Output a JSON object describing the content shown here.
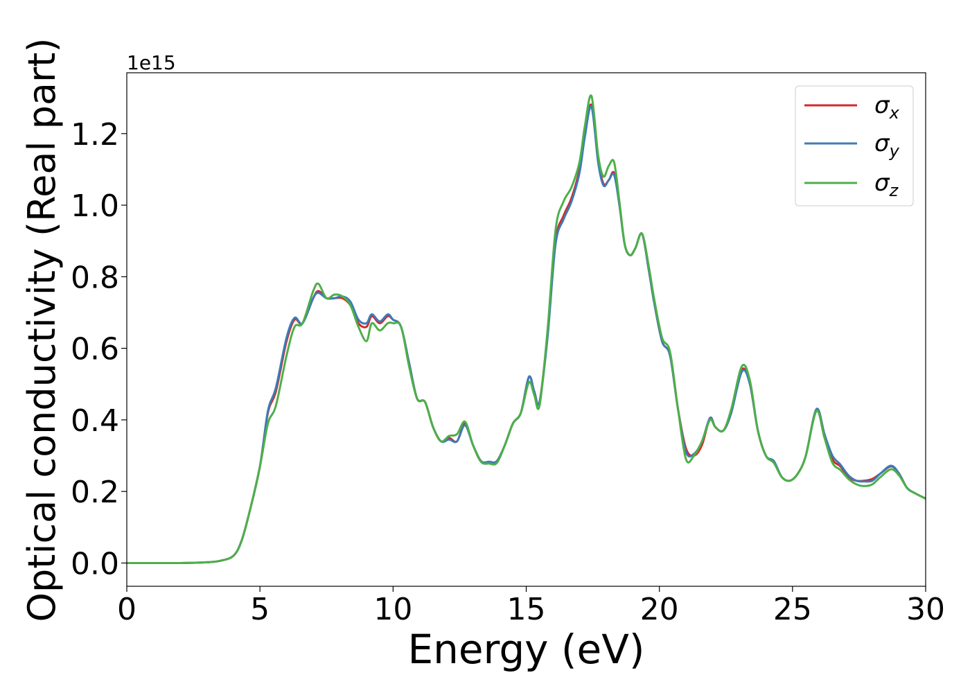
{
  "chart_data": {
    "type": "line",
    "xlabel": "Energy (eV)",
    "ylabel": "Optical conductivity (Real part)",
    "offset_label": "1e15",
    "xlim": [
      0,
      30
    ],
    "ylim": [
      -0.065,
      1.37
    ],
    "xticks": [
      0,
      5,
      10,
      15,
      20,
      25,
      30
    ],
    "xtick_labels": [
      "0",
      "5",
      "10",
      "15",
      "20",
      "25",
      "30"
    ],
    "yticks": [
      0.0,
      0.2,
      0.4,
      0.6,
      0.8,
      1.0,
      1.2
    ],
    "ytick_labels": [
      "0.0",
      "0.2",
      "0.4",
      "0.6",
      "0.8",
      "1.0",
      "1.2"
    ],
    "grid": false,
    "legend_position": "top-right",
    "x": [
      0,
      1,
      2,
      3,
      3.5,
      4,
      4.3,
      4.6,
      5,
      5.3,
      5.6,
      6,
      6.3,
      6.6,
      7,
      7.2,
      7.5,
      7.8,
      8.1,
      8.4,
      8.7,
      9,
      9.2,
      9.5,
      9.8,
      10,
      10.3,
      10.6,
      10.9,
      11.2,
      11.5,
      11.8,
      12.1,
      12.4,
      12.7,
      13,
      13.3,
      13.6,
      13.9,
      14.2,
      14.5,
      14.8,
      15.1,
      15.3,
      15.5,
      15.8,
      16.1,
      16.4,
      16.7,
      17,
      17.2,
      17.45,
      17.7,
      17.9,
      18.1,
      18.3,
      18.5,
      18.7,
      18.9,
      19.1,
      19.35,
      19.6,
      19.8,
      20.1,
      20.4,
      20.7,
      21,
      21.3,
      21.6,
      21.9,
      22.1,
      22.4,
      22.7,
      23.1,
      23.4,
      23.7,
      24,
      24.3,
      24.6,
      24.9,
      25.2,
      25.5,
      25.9,
      26.2,
      26.5,
      26.8,
      27.1,
      27.4,
      27.7,
      28,
      28.3,
      28.7,
      29,
      29.3,
      29.6,
      30
    ],
    "series": [
      {
        "name": "σ",
        "subscript": "x",
        "color": "#d62728",
        "values": [
          0,
          0,
          0,
          0.002,
          0.006,
          0.02,
          0.06,
          0.14,
          0.27,
          0.42,
          0.48,
          0.62,
          0.68,
          0.67,
          0.74,
          0.76,
          0.74,
          0.74,
          0.74,
          0.72,
          0.67,
          0.66,
          0.69,
          0.67,
          0.69,
          0.68,
          0.66,
          0.56,
          0.46,
          0.45,
          0.38,
          0.34,
          0.35,
          0.34,
          0.39,
          0.33,
          0.285,
          0.28,
          0.285,
          0.33,
          0.39,
          0.42,
          0.52,
          0.48,
          0.45,
          0.64,
          0.9,
          0.97,
          1.02,
          1.1,
          1.2,
          1.28,
          1.13,
          1.06,
          1.07,
          1.09,
          1.0,
          0.89,
          0.86,
          0.88,
          0.92,
          0.82,
          0.73,
          0.62,
          0.58,
          0.43,
          0.32,
          0.3,
          0.33,
          0.405,
          0.38,
          0.37,
          0.42,
          0.54,
          0.5,
          0.37,
          0.3,
          0.28,
          0.24,
          0.23,
          0.25,
          0.3,
          0.43,
          0.36,
          0.29,
          0.27,
          0.24,
          0.23,
          0.23,
          0.235,
          0.25,
          0.27,
          0.25,
          0.21,
          0.195,
          0.18
        ]
      },
      {
        "name": "σ",
        "subscript": "y",
        "color": "#3d7bb6",
        "values": [
          0,
          0,
          0,
          0.002,
          0.006,
          0.02,
          0.06,
          0.14,
          0.27,
          0.425,
          0.49,
          0.63,
          0.685,
          0.67,
          0.74,
          0.755,
          0.74,
          0.74,
          0.745,
          0.73,
          0.68,
          0.67,
          0.695,
          0.675,
          0.695,
          0.68,
          0.66,
          0.56,
          0.46,
          0.45,
          0.38,
          0.34,
          0.345,
          0.34,
          0.385,
          0.33,
          0.285,
          0.283,
          0.285,
          0.33,
          0.39,
          0.42,
          0.52,
          0.48,
          0.45,
          0.63,
          0.89,
          0.96,
          1.01,
          1.09,
          1.19,
          1.275,
          1.12,
          1.055,
          1.07,
          1.085,
          1.0,
          0.89,
          0.86,
          0.88,
          0.92,
          0.82,
          0.73,
          0.62,
          0.58,
          0.43,
          0.31,
          0.305,
          0.34,
          0.405,
          0.38,
          0.37,
          0.42,
          0.535,
          0.5,
          0.37,
          0.3,
          0.285,
          0.24,
          0.23,
          0.25,
          0.3,
          0.43,
          0.36,
          0.3,
          0.275,
          0.245,
          0.23,
          0.228,
          0.23,
          0.25,
          0.272,
          0.25,
          0.21,
          0.195,
          0.18
        ]
      },
      {
        "name": "σ",
        "subscript": "z",
        "color": "#4daf4a",
        "values": [
          0,
          0,
          0,
          0.002,
          0.006,
          0.02,
          0.06,
          0.14,
          0.27,
          0.39,
          0.44,
          0.58,
          0.66,
          0.67,
          0.76,
          0.78,
          0.74,
          0.75,
          0.745,
          0.72,
          0.66,
          0.62,
          0.67,
          0.65,
          0.67,
          0.67,
          0.66,
          0.55,
          0.46,
          0.45,
          0.38,
          0.34,
          0.355,
          0.36,
          0.395,
          0.33,
          0.283,
          0.278,
          0.28,
          0.33,
          0.39,
          0.42,
          0.505,
          0.47,
          0.44,
          0.65,
          0.93,
          1.01,
          1.05,
          1.12,
          1.22,
          1.305,
          1.14,
          1.08,
          1.11,
          1.12,
          1.01,
          0.89,
          0.86,
          0.88,
          0.92,
          0.83,
          0.74,
          0.63,
          0.59,
          0.43,
          0.29,
          0.3,
          0.34,
          0.4,
          0.38,
          0.37,
          0.43,
          0.55,
          0.51,
          0.37,
          0.3,
          0.28,
          0.24,
          0.23,
          0.25,
          0.3,
          0.425,
          0.35,
          0.28,
          0.26,
          0.235,
          0.22,
          0.215,
          0.22,
          0.24,
          0.262,
          0.245,
          0.21,
          0.195,
          0.18
        ]
      }
    ]
  }
}
